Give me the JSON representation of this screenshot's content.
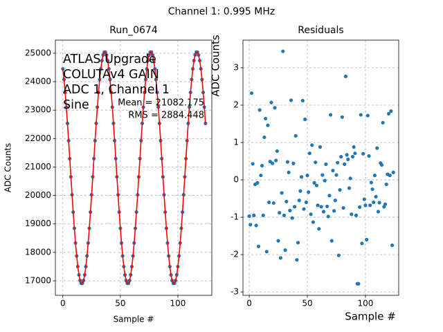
{
  "suptitle": "Channel 1: 0.995 MHz",
  "chart_data": [
    {
      "type": "line",
      "title": "Run_0674",
      "xlabel": "Sample #",
      "ylabel": "ADC Counts",
      "annotations": [
        "ATLAS Upgrade",
        "COLUTAv4 GAIN",
        "ADC 1, Channel 1",
        "Sine"
      ],
      "stats": [
        "Mean = 21082.175",
        "RMS = 2884.448"
      ],
      "x": [
        0,
        1,
        2,
        3,
        4,
        5,
        6,
        7,
        8,
        9,
        10,
        11,
        12,
        13,
        14,
        15,
        16,
        17,
        18,
        19,
        20,
        21,
        22,
        23,
        24,
        25,
        26,
        27,
        28,
        29,
        30,
        31,
        32,
        33,
        34,
        35,
        36,
        37,
        38,
        39,
        40,
        41,
        42,
        43,
        44,
        45,
        46,
        47,
        48,
        49,
        50,
        51,
        52,
        53,
        54,
        55,
        56,
        57,
        58,
        59,
        60,
        61,
        62,
        63,
        64,
        65,
        66,
        67,
        68,
        69,
        70,
        71,
        72,
        73,
        74,
        75,
        76,
        77,
        78,
        79,
        80,
        81,
        82,
        83,
        84,
        85,
        86,
        87,
        88,
        89,
        90,
        91,
        92,
        93,
        94,
        95,
        96,
        97,
        98,
        99,
        100,
        101,
        102,
        103,
        104,
        105,
        106,
        107,
        108,
        109,
        110,
        111,
        112,
        113,
        114,
        115,
        116,
        117,
        118,
        119,
        120,
        121,
        122,
        123,
        124
      ],
      "series": [
        {
          "color": "#1f77b4",
          "line_color": "#ff0000",
          "values": [
            24449,
            24074,
            23621,
            23104,
            22534,
            21926,
            21295,
            20655,
            20024,
            19416,
            18846,
            18329,
            17876,
            17501,
            17210,
            17012,
            16913,
            16913,
            17012,
            17210,
            17501,
            17876,
            18329,
            18846,
            19416,
            20024,
            20655,
            21295,
            21926,
            22534,
            23104,
            23621,
            24074,
            24449,
            24740,
            24938,
            25037,
            25037,
            24938,
            24740,
            24449,
            24074,
            23621,
            23104,
            22534,
            21926,
            21295,
            20655,
            20024,
            19416,
            18846,
            18329,
            17876,
            17501,
            17210,
            17012,
            16913,
            16913,
            17012,
            17210,
            17501,
            17876,
            18329,
            18846,
            19416,
            20024,
            20655,
            21295,
            21926,
            22534,
            23104,
            23621,
            24074,
            24449,
            24740,
            24938,
            25037,
            25037,
            24938,
            24740,
            24449,
            24074,
            23621,
            23104,
            22534,
            21926,
            21295,
            20655,
            20024,
            19416,
            18846,
            18329,
            17876,
            17501,
            17210,
            17012,
            16913,
            16913,
            17012,
            17210,
            17501,
            17876,
            18329,
            18846,
            19416,
            20024,
            20655,
            21295,
            21926,
            22534,
            23104,
            23621,
            24074,
            24449,
            24740,
            24938,
            25037,
            25037,
            24938,
            24740,
            24449,
            24074,
            23621,
            23104,
            22534
          ]
        }
      ],
      "xlim": [
        -6.5,
        129.5
      ],
      "ylim": [
        16490,
        25460
      ],
      "xticks": [
        0,
        50,
        100
      ],
      "yticks": [
        17000,
        18000,
        19000,
        20000,
        21000,
        22000,
        23000,
        24000,
        25000
      ],
      "grid": true
    },
    {
      "type": "scatter",
      "title": "Residuals",
      "xlabel": "Sample #",
      "ylabel": "ADC Counts",
      "x": [
        0,
        1,
        2,
        3,
        4,
        5,
        6,
        7,
        8,
        9,
        10,
        11,
        12,
        13,
        14,
        15,
        16,
        17,
        18,
        19,
        20,
        21,
        22,
        23,
        24,
        25,
        26,
        27,
        28,
        29,
        30,
        31,
        32,
        33,
        34,
        35,
        36,
        37,
        38,
        39,
        40,
        41,
        42,
        43,
        44,
        45,
        46,
        47,
        48,
        49,
        50,
        51,
        52,
        53,
        54,
        55,
        56,
        57,
        58,
        59,
        60,
        61,
        62,
        63,
        64,
        65,
        66,
        67,
        68,
        69,
        70,
        71,
        72,
        73,
        74,
        75,
        76,
        77,
        78,
        79,
        80,
        81,
        82,
        83,
        84,
        85,
        86,
        87,
        88,
        89,
        90,
        91,
        92,
        93,
        94,
        95,
        96,
        97,
        98,
        99,
        100,
        101,
        102,
        103,
        104,
        105,
        106,
        107,
        108,
        109,
        110,
        111,
        112,
        113,
        114,
        115,
        116,
        117,
        118,
        119,
        120,
        121,
        122,
        123,
        124
      ],
      "series": [
        {
          "color": "#1f77b4",
          "values": [
            -0.97,
            -1.2,
            2.32,
            0.43,
            -0.95,
            -0.12,
            -1.22,
            -0.08,
            -1.78,
            1.87,
            0.12,
            0.38,
            -0.95,
            1.14,
            1.64,
            -1.92,
            1.46,
            -0.6,
            0.49,
            2.07,
            0.44,
            -0.62,
            1.93,
            0.52,
            0.77,
            -1.63,
            -0.88,
            -2.09,
            -0.35,
            3.44,
            -0.95,
            -1.88,
            -0.58,
            0.48,
            0.2,
            -0.82,
            2.13,
            -1.02,
            0.44,
            -0.72,
            1.18,
            -2.14,
            -1.68,
            -0.55,
            -0.3,
            0.08,
            2.12,
            -0.78,
            1.62,
            -0.6,
            0.12,
            -0.33,
            0.71,
            -0.92,
            0.93,
            -1.13,
            -0.08,
            0.47,
            -0.15,
            -0.68,
            -1.31,
            0.88,
            -0.72,
            0.13,
            -0.85,
            -0.02,
            0.42,
            -0.71,
            -0.98,
            -0.42,
            1.74,
            -1.63,
            0.25,
            -0.83,
            -0.55,
            0.13,
            0.46,
            -2.02,
            -0.27,
            0.62,
            1.68,
            -0.75,
            0.42,
            2.77,
            0.67,
            0.55,
            -0.22,
            0.04,
            -0.92,
            0.62,
            0.88,
            0.71,
            -0.95,
            -2.78,
            -2.78,
            -0.73,
            1.74,
            -1.7,
            0.7,
            -0.52,
            -0.68,
            -1.6,
            1.72,
            0.64,
            -0.68,
            -0.07,
            -0.25,
            -0.6,
            0.12,
            -0.45,
            0.85,
            -0.85,
            -0.61,
            0.45,
            0.4,
            1.53,
            -0.72,
            -0.65,
            -0.12,
            0.15,
            1.77,
            0.12,
            1.84,
            -1.75,
            0.2
          ]
        }
      ],
      "xlim": [
        -5.4,
        128.6
      ],
      "ylim": [
        -3.09,
        3.74
      ],
      "xticks": [
        0,
        50,
        100
      ],
      "yticks": [
        -3,
        -2,
        -1,
        0,
        1,
        2,
        3
      ],
      "grid": true
    }
  ]
}
